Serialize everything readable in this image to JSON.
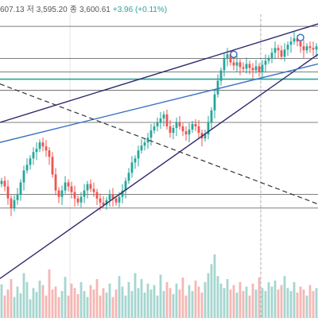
{
  "ohlc": {
    "open_value_fragment": "607.13",
    "low_label": "저",
    "low_value": "3,595.20",
    "close_label": "종",
    "close_value": "3,600.61",
    "change": "+3.96 (+0.11%)"
  },
  "colors": {
    "up": "#26a69a",
    "down": "#ef5350",
    "volume_up": "#a5d6cf",
    "volume_down": "#f5b6b4",
    "trendline": "#2e2a6e",
    "regression": "#3b73c4",
    "support_teal": "#26a69a",
    "hline": "#555555"
  },
  "chart_data": {
    "type": "candlestick",
    "price_range": [
      3360,
      3640
    ],
    "horizontal_levels": [
      3625,
      3585,
      3568,
      3545,
      3505,
      3415,
      3398
    ],
    "support_level": 3559,
    "trendlines": [
      {
        "name": "channel-upper",
        "from": [
          0,
          3505
        ],
        "to": [
          100,
          3628
        ]
      },
      {
        "name": "channel-lower",
        "from": [
          0,
          3310
        ],
        "to": [
          100,
          3590
        ]
      },
      {
        "name": "regression",
        "from": [
          0,
          3480
        ],
        "to": [
          100,
          3578
        ]
      },
      {
        "name": "dashed-downtrend",
        "from": [
          0,
          3553
        ],
        "to": [
          100,
          3403
        ]
      }
    ],
    "markers": [
      {
        "bar": 73,
        "price": 3590
      },
      {
        "bar": 94,
        "price": 3611
      }
    ],
    "candles_close": [
      3432,
      3425,
      3410,
      3398,
      3408,
      3415,
      3430,
      3445,
      3452,
      3460,
      3468,
      3472,
      3480,
      3475,
      3470,
      3462,
      3440,
      3420,
      3412,
      3420,
      3430,
      3425,
      3418,
      3410,
      3405,
      3412,
      3420,
      3428,
      3422,
      3418,
      3410,
      3405,
      3402,
      3408,
      3415,
      3410,
      3405,
      3412,
      3420,
      3432,
      3442,
      3455,
      3460,
      3470,
      3476,
      3480,
      3486,
      3495,
      3500,
      3505,
      3510,
      3515,
      3500,
      3492,
      3498,
      3505,
      3500,
      3494,
      3490,
      3496,
      3503,
      3500,
      3492,
      3485,
      3490,
      3505,
      3520,
      3540,
      3557,
      3570,
      3585,
      3590,
      3580,
      3576,
      3580,
      3574,
      3572,
      3578,
      3573,
      3570,
      3575,
      3568,
      3577,
      3582,
      3585,
      3592,
      3598,
      3595,
      3587,
      3596,
      3602,
      3606,
      3610,
      3606,
      3600,
      3595,
      3600,
      3598,
      3596,
      3600
    ],
    "volume": [
      45,
      30,
      38,
      52,
      28,
      42,
      33,
      60,
      48,
      25,
      40,
      35,
      50,
      44,
      30,
      65,
      38,
      42,
      28,
      36,
      55,
      30,
      46,
      40,
      32,
      48,
      36,
      28,
      44,
      38,
      52,
      30,
      40,
      34,
      46,
      28,
      38,
      56,
      42,
      30,
      48,
      36,
      60,
      40,
      52,
      34,
      46,
      38,
      44,
      30,
      58,
      36,
      48,
      40,
      32,
      46,
      38,
      54,
      30,
      44,
      36,
      50,
      42,
      34,
      48,
      60,
      72,
      85,
      56,
      46,
      40,
      52,
      38,
      44,
      34,
      48,
      36,
      42,
      30,
      46,
      38,
      54,
      40,
      36,
      48,
      42,
      50,
      38,
      44,
      56,
      40,
      36,
      48,
      34,
      42,
      38,
      30,
      44,
      36,
      40
    ]
  }
}
